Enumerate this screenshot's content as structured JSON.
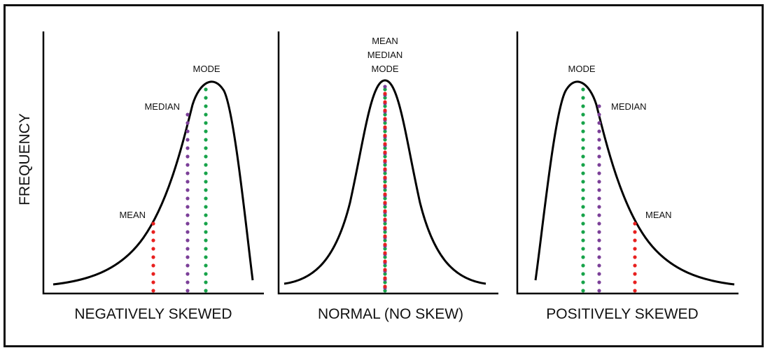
{
  "y_axis_label": "FREQUENCY",
  "colors": {
    "mean": "#e8201f",
    "median": "#7b3f98",
    "mode": "#17a34a",
    "curve": "#000000"
  },
  "panels": [
    {
      "id": "negative",
      "title": "NEGATIVELY SKEWED",
      "labels": {
        "mean": "MEAN",
        "median": "MEDIAN",
        "mode": "MODE"
      }
    },
    {
      "id": "normal",
      "title": "NORMAL (NO SKEW)",
      "labels": {
        "mean": "MEAN",
        "median": "MEDIAN",
        "mode": "MODE"
      }
    },
    {
      "id": "positive",
      "title": "POSITIVELY SKEWED",
      "labels": {
        "mean": "MEAN",
        "median": "MEDIAN",
        "mode": "MODE"
      }
    }
  ]
}
